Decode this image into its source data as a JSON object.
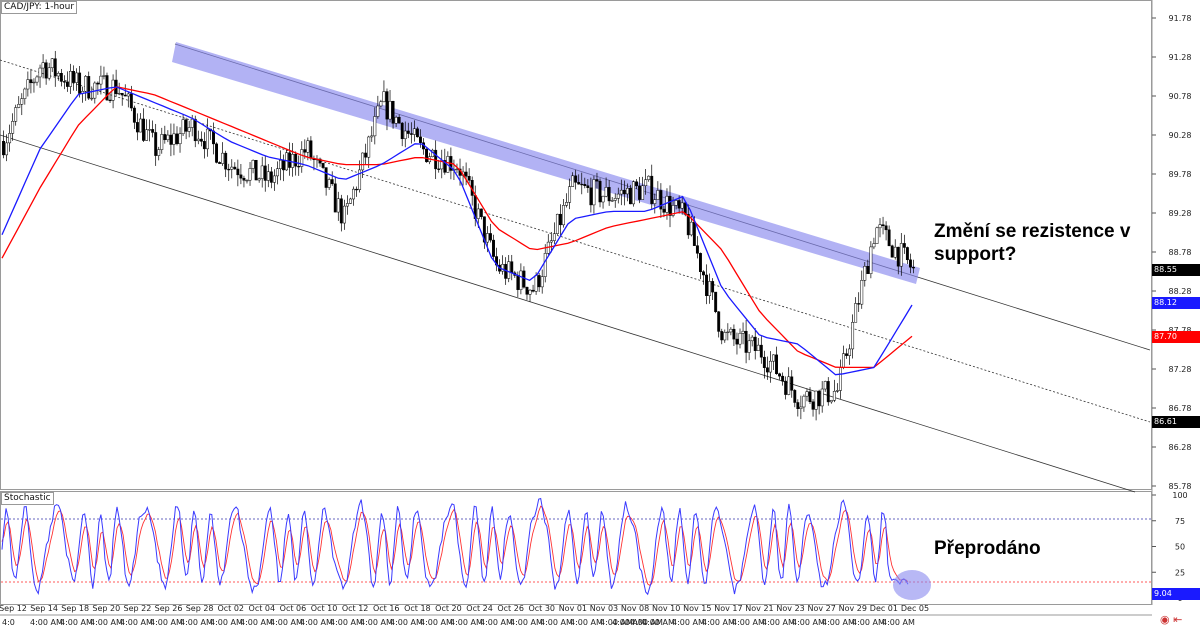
{
  "chart_data": [
    {
      "type": "candlestick",
      "symbol_label": "CAD/JPY: 1-hour",
      "y_ticks": [
        "91.78",
        "91.28",
        "90.78",
        "90.28",
        "89.78",
        "89.28",
        "88.78",
        "88.28",
        "87.78",
        "87.28",
        "86.78",
        "86.28",
        "85.78"
      ],
      "y_values": [
        91.78,
        91.28,
        90.78,
        90.28,
        89.78,
        89.28,
        88.78,
        88.28,
        87.78,
        87.28,
        86.78,
        86.28,
        85.78
      ],
      "ylim": [
        85.65,
        91.98
      ],
      "price_tags": [
        {
          "name": "last-price",
          "value": "88.55",
          "bg": "#000000",
          "fg": "#ffffff"
        },
        {
          "name": "blue-ma",
          "value": "88.12",
          "bg": "#1a1aff",
          "fg": "#ffffff"
        },
        {
          "name": "red-ma",
          "value": "87.70",
          "bg": "#ff0000",
          "fg": "#ffffff"
        },
        {
          "name": "channel-mid",
          "value": "86.61",
          "bg": "#000000",
          "fg": "#ffffff"
        }
      ],
      "series": [
        {
          "name": "blue-moving-average",
          "color": "#1a1aff",
          "values": [
            89.0,
            90.1,
            90.8,
            90.9,
            90.7,
            90.5,
            90.2,
            90.0,
            89.9,
            89.7,
            89.9,
            90.2,
            89.8,
            88.6,
            88.4,
            89.2,
            89.3,
            89.3,
            89.5,
            88.3,
            87.7,
            87.6,
            87.2,
            87.3,
            88.1
          ]
        },
        {
          "name": "red-moving-average",
          "color": "#ff0000",
          "values": [
            88.7,
            89.6,
            90.4,
            90.9,
            90.8,
            90.6,
            90.4,
            90.2,
            90.0,
            89.9,
            89.9,
            90.0,
            89.9,
            89.1,
            88.8,
            88.9,
            89.1,
            89.2,
            89.3,
            88.8,
            88.0,
            87.5,
            87.3,
            87.3,
            87.7
          ]
        },
        {
          "name": "price",
          "color": "#000000",
          "values": [
            90.2,
            91.2,
            90.9,
            90.9,
            90.1,
            90.4,
            89.9,
            89.7,
            90.1,
            89.2,
            90.7,
            90.1,
            89.9,
            88.6,
            88.3,
            89.6,
            89.5,
            89.6,
            89.2,
            87.7,
            87.5,
            86.9,
            87.0,
            89.1,
            88.55
          ]
        }
      ],
      "annotations": [
        "Změní se rezistence v support?"
      ]
    },
    {
      "type": "line",
      "panel_label": "Stochastic",
      "y_ticks": [
        "100",
        "75",
        "50",
        "25",
        "9.04",
        "0"
      ],
      "levels": [
        80,
        20
      ],
      "last_value_label": "9.04",
      "series_colors": {
        "k": "#3a3aff",
        "d": "#ff3333"
      },
      "annotations": [
        "Přeprodáno"
      ]
    }
  ],
  "x_axis": {
    "date_labels": [
      "Sep 12",
      "Sep 14",
      "Sep 18",
      "Sep 20",
      "Sep 22",
      "Sep 26",
      "Sep 28",
      "Oct 02",
      "Oct 04",
      "Oct 06",
      "Oct 10",
      "Oct 12",
      "Oct 16",
      "Oct 18",
      "Oct 20",
      "Oct 24",
      "Oct 26",
      "Oct 30",
      "Nov 01",
      "Nov 03",
      "Nov 08",
      "Nov 10",
      "Nov 15",
      "Nov 17",
      "Nov 21",
      "Nov 23",
      "Nov 27",
      "Nov 29",
      "Dec 01",
      "Dec 05"
    ],
    "time_label": "4:00 AM",
    "first_time_label": "4:0"
  }
}
